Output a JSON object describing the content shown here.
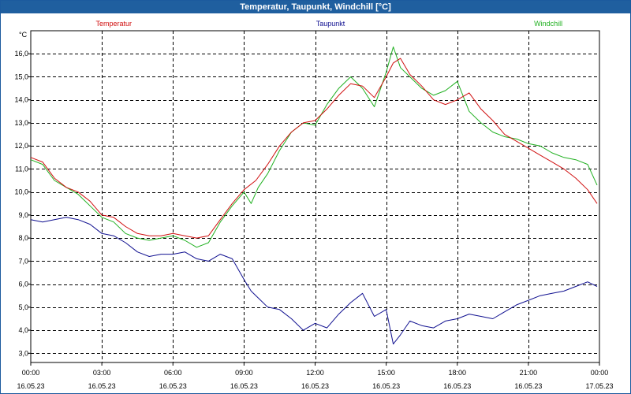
{
  "window": {
    "title": "Temperatur, Taupunkt, Windchill [°C]"
  },
  "chart_data": {
    "type": "line",
    "title": "Temperatur, Taupunkt, Windchill [°C]",
    "ylabel": "°C",
    "xlabel": "",
    "ylim": [
      2.6,
      17.0
    ],
    "yticks": [
      "3,0",
      "4,0",
      "5,0",
      "6,0",
      "7,0",
      "8,0",
      "9,0",
      "10,0",
      "11,0",
      "12,0",
      "13,0",
      "14,0",
      "15,0",
      "16,0"
    ],
    "ytick_values": [
      3,
      4,
      5,
      6,
      7,
      8,
      9,
      10,
      11,
      12,
      13,
      14,
      15,
      16
    ],
    "xlim": [
      0,
      24
    ],
    "xticks": [
      {
        "hour": 0,
        "time": "00:00",
        "date": "16.05.23"
      },
      {
        "hour": 3,
        "time": "03:00",
        "date": "16.05.23"
      },
      {
        "hour": 6,
        "time": "06:00",
        "date": "16.05.23"
      },
      {
        "hour": 9,
        "time": "09:00",
        "date": "16.05.23"
      },
      {
        "hour": 12,
        "time": "12:00",
        "date": "16.05.23"
      },
      {
        "hour": 15,
        "time": "15:00",
        "date": "16.05.23"
      },
      {
        "hour": 18,
        "time": "18:00",
        "date": "16.05.23"
      },
      {
        "hour": 21,
        "time": "21:00",
        "date": "16.05.23"
      },
      {
        "hour": 24,
        "time": "00:00",
        "date": "17.05.23"
      }
    ],
    "grid": true,
    "legend_position": "top",
    "series": [
      {
        "name": "Temperatur",
        "color": "#d01010",
        "x": [
          0,
          0.5,
          1,
          1.5,
          2,
          2.5,
          3,
          3.5,
          4,
          4.5,
          5,
          5.5,
          6,
          6.5,
          7,
          7.5,
          8,
          8.5,
          9,
          9.5,
          10,
          10.5,
          11,
          11.5,
          12,
          12.5,
          13,
          13.5,
          14,
          14.5,
          15,
          15.3,
          15.6,
          16,
          16.5,
          17,
          17.5,
          18,
          18.5,
          19,
          19.5,
          20,
          20.5,
          21,
          21.5,
          22,
          22.5,
          23,
          23.5,
          23.9
        ],
        "y": [
          11.5,
          11.3,
          10.6,
          10.2,
          10.0,
          9.6,
          9.0,
          8.9,
          8.5,
          8.2,
          8.1,
          8.1,
          8.2,
          8.1,
          8.0,
          8.1,
          8.8,
          9.5,
          10.1,
          10.5,
          11.2,
          12.0,
          12.6,
          13.0,
          13.1,
          13.6,
          14.2,
          14.7,
          14.6,
          14.1,
          15.0,
          15.6,
          15.8,
          15.1,
          14.6,
          14.0,
          13.8,
          14.0,
          14.3,
          13.6,
          13.1,
          12.5,
          12.2,
          11.9,
          11.6,
          11.3,
          11.0,
          10.6,
          10.1,
          9.5
        ]
      },
      {
        "name": "Taupunkt",
        "color": "#101090",
        "x": [
          0,
          0.5,
          1,
          1.5,
          2,
          2.5,
          3,
          3.5,
          4,
          4.5,
          5,
          5.5,
          6,
          6.5,
          7,
          7.5,
          8,
          8.5,
          9,
          9.3,
          9.6,
          10,
          10.5,
          11,
          11.5,
          12,
          12.5,
          13,
          13.5,
          14,
          14.5,
          15,
          15.3,
          15.6,
          16,
          16.5,
          17,
          17.5,
          18,
          18.5,
          19,
          19.5,
          20,
          20.5,
          21,
          21.5,
          22,
          22.5,
          23,
          23.5,
          23.9
        ],
        "y": [
          8.8,
          8.7,
          8.8,
          8.9,
          8.8,
          8.6,
          8.2,
          8.1,
          7.8,
          7.4,
          7.2,
          7.3,
          7.3,
          7.4,
          7.1,
          7.0,
          7.3,
          7.1,
          6.2,
          5.7,
          5.4,
          5.0,
          4.9,
          4.5,
          4.0,
          4.3,
          4.1,
          4.7,
          5.2,
          5.6,
          4.6,
          4.9,
          3.4,
          3.8,
          4.4,
          4.2,
          4.1,
          4.4,
          4.5,
          4.7,
          4.6,
          4.5,
          4.8,
          5.1,
          5.3,
          5.5,
          5.6,
          5.7,
          5.9,
          6.1,
          5.9
        ]
      },
      {
        "name": "Windchill",
        "color": "#20b020",
        "x": [
          0,
          0.5,
          1,
          1.5,
          2,
          2.5,
          3,
          3.5,
          4,
          4.5,
          5,
          5.5,
          6,
          6.5,
          7,
          7.5,
          8,
          8.5,
          9,
          9.3,
          9.6,
          10,
          10.5,
          11,
          11.5,
          12,
          12.5,
          13,
          13.5,
          14,
          14.5,
          15,
          15.3,
          15.6,
          16,
          16.5,
          17,
          17.5,
          18,
          18.5,
          19,
          19.5,
          20,
          20.5,
          21,
          21.5,
          22,
          22.5,
          23,
          23.5,
          23.9
        ],
        "y": [
          11.4,
          11.2,
          10.5,
          10.2,
          9.9,
          9.4,
          8.9,
          8.7,
          8.2,
          8.0,
          7.9,
          8.0,
          8.1,
          7.9,
          7.6,
          7.8,
          8.7,
          9.4,
          10.0,
          9.5,
          10.2,
          10.8,
          11.8,
          12.6,
          13.0,
          12.9,
          13.8,
          14.5,
          15.0,
          14.5,
          13.7,
          15.2,
          16.3,
          15.4,
          15.0,
          14.5,
          14.2,
          14.4,
          14.8,
          13.5,
          13.0,
          12.6,
          12.4,
          12.3,
          12.1,
          12.0,
          11.7,
          11.5,
          11.4,
          11.2,
          10.3
        ]
      }
    ]
  }
}
